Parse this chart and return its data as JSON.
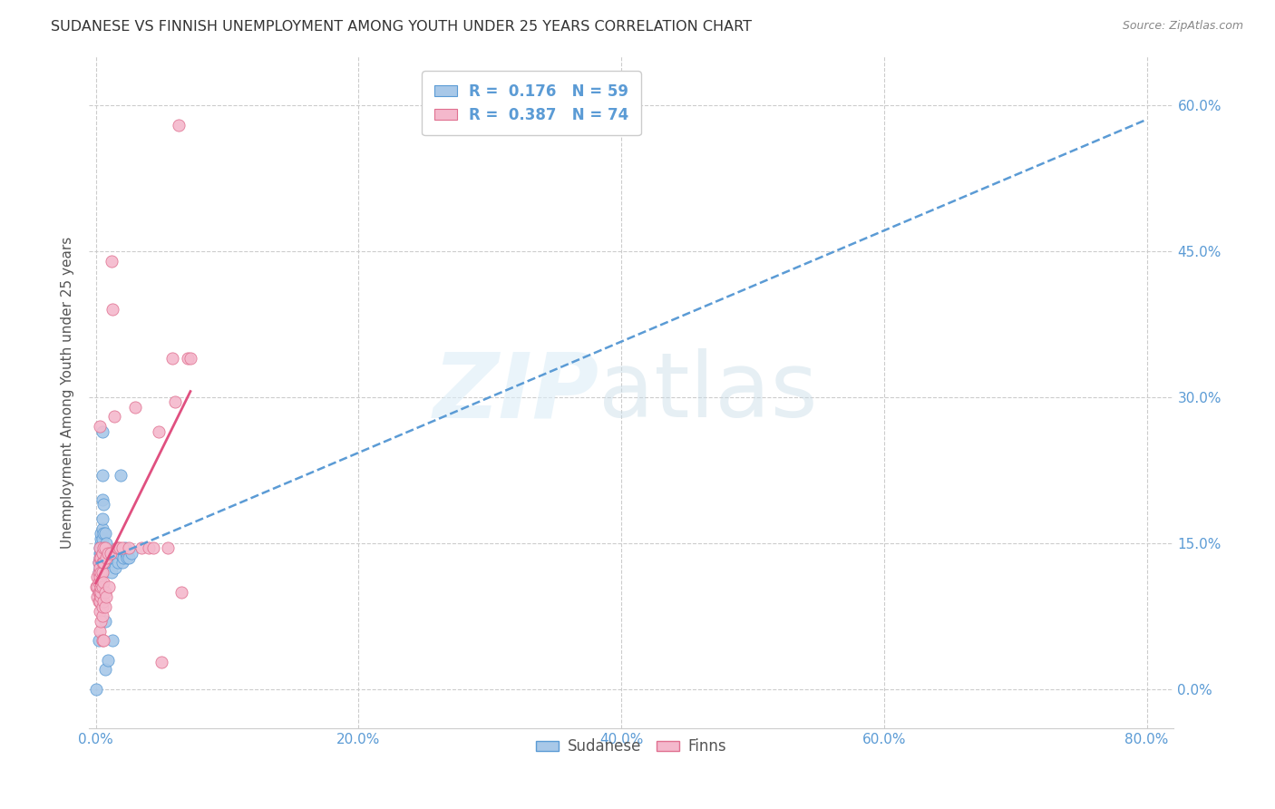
{
  "title": "SUDANESE VS FINNISH UNEMPLOYMENT AMONG YOUTH UNDER 25 YEARS CORRELATION CHART",
  "source": "Source: ZipAtlas.com",
  "ylabel": "Unemployment Among Youth under 25 years",
  "xlim": [
    -0.005,
    0.82
  ],
  "ylim": [
    -0.04,
    0.65
  ],
  "x_tick_vals": [
    0.0,
    0.2,
    0.4,
    0.6,
    0.8
  ],
  "x_tick_labels": [
    "0.0%",
    "20.0%",
    "40.0%",
    "60.0%",
    "80.0%"
  ],
  "y_tick_vals": [
    0.0,
    0.15,
    0.3,
    0.45,
    0.6
  ],
  "y_tick_labels": [
    "0.0%",
    "15.0%",
    "30.0%",
    "45.0%",
    "60.0%"
  ],
  "sudanese_color": "#a8c8e8",
  "sudanese_edge": "#5b9bd5",
  "finns_color": "#f4b8cc",
  "finns_edge": "#e07090",
  "sudanese_line_color": "#5b9bd5",
  "finns_line_color": "#e05080",
  "grid_color": "#cccccc",
  "background_color": "#ffffff",
  "tick_color": "#5b9bd5",
  "sudanese_points": [
    [
      0.0,
      0.0
    ],
    [
      0.002,
      0.05
    ],
    [
      0.002,
      0.1
    ],
    [
      0.002,
      0.12
    ],
    [
      0.002,
      0.13
    ],
    [
      0.003,
      0.105
    ],
    [
      0.003,
      0.11
    ],
    [
      0.003,
      0.12
    ],
    [
      0.003,
      0.125
    ],
    [
      0.003,
      0.13
    ],
    [
      0.003,
      0.135
    ],
    [
      0.003,
      0.14
    ],
    [
      0.003,
      0.145
    ],
    [
      0.004,
      0.115
    ],
    [
      0.004,
      0.13
    ],
    [
      0.004,
      0.135
    ],
    [
      0.004,
      0.14
    ],
    [
      0.004,
      0.145
    ],
    [
      0.004,
      0.15
    ],
    [
      0.004,
      0.155
    ],
    [
      0.004,
      0.16
    ],
    [
      0.005,
      0.13
    ],
    [
      0.005,
      0.14
    ],
    [
      0.005,
      0.155
    ],
    [
      0.005,
      0.165
    ],
    [
      0.005,
      0.175
    ],
    [
      0.005,
      0.195
    ],
    [
      0.005,
      0.22
    ],
    [
      0.005,
      0.265
    ],
    [
      0.006,
      0.135
    ],
    [
      0.006,
      0.145
    ],
    [
      0.006,
      0.16
    ],
    [
      0.006,
      0.19
    ],
    [
      0.007,
      0.02
    ],
    [
      0.007,
      0.07
    ],
    [
      0.007,
      0.13
    ],
    [
      0.007,
      0.135
    ],
    [
      0.007,
      0.145
    ],
    [
      0.007,
      0.16
    ],
    [
      0.008,
      0.14
    ],
    [
      0.008,
      0.15
    ],
    [
      0.009,
      0.03
    ],
    [
      0.009,
      0.135
    ],
    [
      0.01,
      0.14
    ],
    [
      0.01,
      0.135
    ],
    [
      0.012,
      0.12
    ],
    [
      0.013,
      0.05
    ],
    [
      0.015,
      0.125
    ],
    [
      0.016,
      0.14
    ],
    [
      0.017,
      0.13
    ],
    [
      0.018,
      0.14
    ],
    [
      0.019,
      0.22
    ],
    [
      0.02,
      0.13
    ],
    [
      0.021,
      0.135
    ],
    [
      0.022,
      0.145
    ],
    [
      0.023,
      0.14
    ],
    [
      0.024,
      0.135
    ],
    [
      0.025,
      0.135
    ],
    [
      0.027,
      0.14
    ]
  ],
  "finns_points": [
    [
      0.0,
      0.105
    ],
    [
      0.001,
      0.095
    ],
    [
      0.001,
      0.105
    ],
    [
      0.001,
      0.115
    ],
    [
      0.002,
      0.09
    ],
    [
      0.002,
      0.1
    ],
    [
      0.002,
      0.11
    ],
    [
      0.002,
      0.12
    ],
    [
      0.002,
      0.13
    ],
    [
      0.003,
      0.06
    ],
    [
      0.003,
      0.08
    ],
    [
      0.003,
      0.09
    ],
    [
      0.003,
      0.1
    ],
    [
      0.003,
      0.115
    ],
    [
      0.003,
      0.125
    ],
    [
      0.003,
      0.135
    ],
    [
      0.003,
      0.145
    ],
    [
      0.003,
      0.27
    ],
    [
      0.004,
      0.07
    ],
    [
      0.004,
      0.095
    ],
    [
      0.004,
      0.1
    ],
    [
      0.004,
      0.105
    ],
    [
      0.004,
      0.11
    ],
    [
      0.004,
      0.12
    ],
    [
      0.004,
      0.135
    ],
    [
      0.005,
      0.05
    ],
    [
      0.005,
      0.075
    ],
    [
      0.005,
      0.085
    ],
    [
      0.005,
      0.105
    ],
    [
      0.005,
      0.12
    ],
    [
      0.005,
      0.13
    ],
    [
      0.005,
      0.14
    ],
    [
      0.006,
      0.05
    ],
    [
      0.006,
      0.09
    ],
    [
      0.006,
      0.11
    ],
    [
      0.006,
      0.13
    ],
    [
      0.006,
      0.145
    ],
    [
      0.007,
      0.085
    ],
    [
      0.007,
      0.1
    ],
    [
      0.007,
      0.145
    ],
    [
      0.008,
      0.095
    ],
    [
      0.008,
      0.135
    ],
    [
      0.009,
      0.14
    ],
    [
      0.01,
      0.105
    ],
    [
      0.011,
      0.14
    ],
    [
      0.012,
      0.44
    ],
    [
      0.013,
      0.39
    ],
    [
      0.014,
      0.28
    ],
    [
      0.016,
      0.145
    ],
    [
      0.017,
      0.145
    ],
    [
      0.018,
      0.145
    ],
    [
      0.02,
      0.145
    ],
    [
      0.025,
      0.145
    ],
    [
      0.03,
      0.29
    ],
    [
      0.035,
      0.145
    ],
    [
      0.04,
      0.145
    ],
    [
      0.044,
      0.145
    ],
    [
      0.048,
      0.265
    ],
    [
      0.05,
      0.028
    ],
    [
      0.055,
      0.145
    ],
    [
      0.058,
      0.34
    ],
    [
      0.06,
      0.295
    ],
    [
      0.063,
      0.58
    ],
    [
      0.065,
      0.1
    ],
    [
      0.07,
      0.34
    ],
    [
      0.072,
      0.34
    ]
  ]
}
